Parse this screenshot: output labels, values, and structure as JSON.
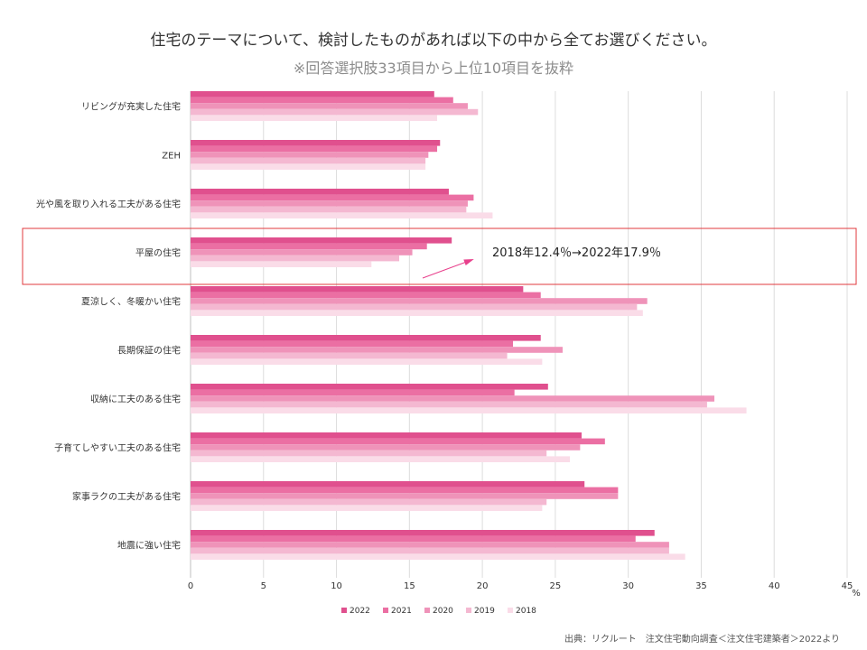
{
  "title": "住宅のテーマについて、検討したものがあれば以下の中から全てお選びください。",
  "subtitle": "※回答選択肢33項目から上位10項目を抜粋",
  "source": "出典：リクルート　注文住宅動向調査＜注文住宅建築者＞2022より",
  "annotation": {
    "text": "2018年12.4％→2022年17.9％",
    "highlight_category": "平屋の住宅",
    "box_color": "#e0383e",
    "arrow_color": "#e8408c"
  },
  "chart_data": {
    "type": "bar",
    "orientation": "horizontal",
    "categories": [
      "リビングが充実した住宅",
      "ZEH",
      "光や風を取り入れる工夫がある住宅",
      "平屋の住宅",
      "夏涼しく、冬暖かい住宅",
      "長期保証の住宅",
      "収納に工夫のある住宅",
      "子育てしやすい工夫のある住宅",
      "家事ラクの工夫がある住宅",
      "地震に強い住宅"
    ],
    "series": [
      {
        "name": "2022",
        "color": "#e0508e",
        "values": [
          16.7,
          17.1,
          17.7,
          17.9,
          22.8,
          24.0,
          24.5,
          26.8,
          27.0,
          31.8
        ]
      },
      {
        "name": "2021",
        "color": "#eb6fa3",
        "values": [
          18.0,
          16.9,
          19.4,
          16.2,
          24.0,
          22.1,
          22.2,
          28.4,
          29.3,
          30.5
        ]
      },
      {
        "name": "2020",
        "color": "#ef93b9",
        "values": [
          19.0,
          16.3,
          19.0,
          15.2,
          31.3,
          25.5,
          35.9,
          26.7,
          29.3,
          32.8
        ]
      },
      {
        "name": "2019",
        "color": "#f4b8d1",
        "values": [
          19.7,
          16.1,
          18.9,
          14.3,
          30.6,
          21.7,
          35.4,
          24.4,
          24.4,
          32.8
        ]
      },
      {
        "name": "2018",
        "color": "#fadce8",
        "values": [
          16.9,
          16.1,
          20.7,
          12.4,
          31.0,
          24.1,
          38.1,
          26.0,
          24.1,
          33.9
        ]
      }
    ],
    "xlim": [
      0,
      45
    ],
    "xticks": [
      0,
      5,
      10,
      15,
      20,
      25,
      30,
      35,
      40,
      45
    ],
    "xunit": "%",
    "grid": true,
    "legend": "bottom"
  }
}
